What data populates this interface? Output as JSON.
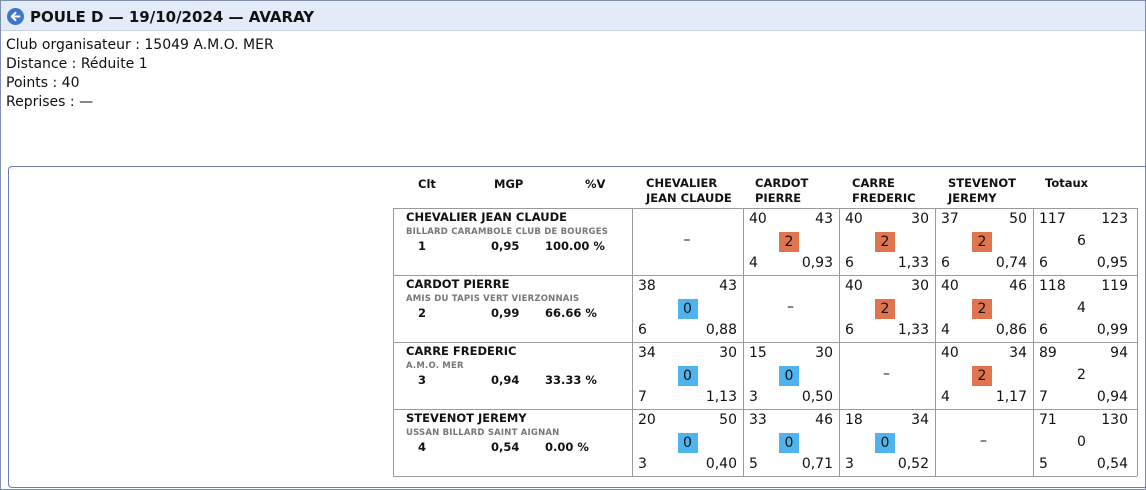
{
  "title": "POULE D — 19/10/2024 — AVARAY",
  "info": {
    "club": "Club organisateur : 15049 A.M.O. MER",
    "distance": "Distance : Réduite 1",
    "points": "Points : 40",
    "reprises": "Reprises : —"
  },
  "headers": {
    "clt": "Clt",
    "mgp": "MGP",
    "pv": "%V",
    "col1": "CHEVALIER\nJEAN CLAUDE",
    "col2": "CARDOT\nPIERRE",
    "col3": "CARRE\nFREDERIC",
    "col4": "STEVENOT\nJEREMY",
    "totaux": "Totaux"
  },
  "players": [
    {
      "name": "CHEVALIER JEAN CLAUDE",
      "club": "BILLARD CARAMBOLE CLUB DE BOURGES",
      "rank": "1",
      "mgp": "0,95",
      "pv": "100.00 %",
      "totals": {
        "pts": "117",
        "opp": "123",
        "score": "6",
        "rep": "6",
        "avg": "0,95"
      },
      "cells": [
        null,
        {
          "pts": "40",
          "opp": "43",
          "score": "2",
          "rep": "4",
          "avg": "0,93",
          "result": "win"
        },
        {
          "pts": "40",
          "opp": "30",
          "score": "2",
          "rep": "6",
          "avg": "1,33",
          "result": "win"
        },
        {
          "pts": "37",
          "opp": "50",
          "score": "2",
          "rep": "6",
          "avg": "0,74",
          "result": "win"
        }
      ]
    },
    {
      "name": "CARDOT PIERRE",
      "club": "AMIS DU TAPIS VERT VIERZONNAIS",
      "rank": "2",
      "mgp": "0,99",
      "pv": "66.66 %",
      "totals": {
        "pts": "118",
        "opp": "119",
        "score": "4",
        "rep": "6",
        "avg": "0,99"
      },
      "cells": [
        {
          "pts": "38",
          "opp": "43",
          "score": "0",
          "rep": "6",
          "avg": "0,88",
          "result": "loss"
        },
        null,
        {
          "pts": "40",
          "opp": "30",
          "score": "2",
          "rep": "6",
          "avg": "1,33",
          "result": "win"
        },
        {
          "pts": "40",
          "opp": "46",
          "score": "2",
          "rep": "4",
          "avg": "0,86",
          "result": "win"
        }
      ]
    },
    {
      "name": "CARRE FREDERIC",
      "club": "A.M.O. MER",
      "rank": "3",
      "mgp": "0,94",
      "pv": "33.33 %",
      "totals": {
        "pts": "89",
        "opp": "94",
        "score": "2",
        "rep": "7",
        "avg": "0,94"
      },
      "cells": [
        {
          "pts": "34",
          "opp": "30",
          "score": "0",
          "rep": "7",
          "avg": "1,13",
          "result": "loss"
        },
        {
          "pts": "15",
          "opp": "30",
          "score": "0",
          "rep": "3",
          "avg": "0,50",
          "result": "loss"
        },
        null,
        {
          "pts": "40",
          "opp": "34",
          "score": "2",
          "rep": "4",
          "avg": "1,17",
          "result": "win"
        }
      ]
    },
    {
      "name": "STEVENOT JEREMY",
      "club": "USSAN BILLARD SAINT AIGNAN",
      "rank": "4",
      "mgp": "0,54",
      "pv": "0.00 %",
      "totals": {
        "pts": "71",
        "opp": "130",
        "score": "0",
        "rep": "5",
        "avg": "0,54"
      },
      "cells": [
        {
          "pts": "20",
          "opp": "50",
          "score": "0",
          "rep": "3",
          "avg": "0,40",
          "result": "loss"
        },
        {
          "pts": "33",
          "opp": "46",
          "score": "0",
          "rep": "5",
          "avg": "0,71",
          "result": "loss"
        },
        {
          "pts": "18",
          "opp": "34",
          "score": "0",
          "rep": "3",
          "avg": "0,52",
          "result": "loss"
        },
        null
      ]
    }
  ],
  "empty_cell": "–",
  "colors": {
    "win": "#e0744e",
    "loss": "#4fb3ee",
    "titlebar": "#e3ebf8"
  }
}
